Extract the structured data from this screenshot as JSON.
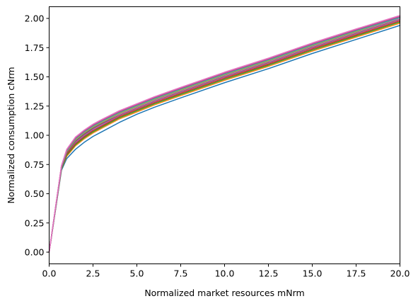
{
  "chart_data": {
    "type": "line",
    "title": "",
    "xlabel": "Normalized market resources mNrm",
    "ylabel": "Normalized consumption cNrm",
    "xlim": [
      0.0,
      20.0
    ],
    "ylim": [
      -0.1,
      2.1
    ],
    "grid": false,
    "legend": "none",
    "x_ticks": [
      "0.0",
      "2.5",
      "5.0",
      "7.5",
      "10.0",
      "12.5",
      "15.0",
      "17.5",
      "20.0"
    ],
    "y_ticks": [
      "0.00",
      "0.25",
      "0.50",
      "0.75",
      "1.00",
      "1.25",
      "1.50",
      "1.75",
      "2.00"
    ],
    "x": [
      0.0,
      0.7,
      1.0,
      1.5,
      2.0,
      2.5,
      3.0,
      4.0,
      5.0,
      6.0,
      7.5,
      10.0,
      12.5,
      15.0,
      17.5,
      20.0
    ],
    "series": [
      {
        "color": "#1f77b4",
        "values": [
          0.0,
          0.7,
          0.8,
          0.88,
          0.94,
          0.99,
          1.03,
          1.11,
          1.18,
          1.24,
          1.32,
          1.45,
          1.57,
          1.7,
          1.82,
          1.94
        ]
      },
      {
        "color": "#ff7f0e",
        "values": [
          0.0,
          0.71,
          0.82,
          0.91,
          0.97,
          1.02,
          1.06,
          1.14,
          1.2,
          1.26,
          1.34,
          1.47,
          1.59,
          1.72,
          1.84,
          1.96
        ]
      },
      {
        "color": "#2ca02c",
        "values": [
          0.0,
          0.71,
          0.83,
          0.92,
          0.98,
          1.03,
          1.07,
          1.15,
          1.21,
          1.27,
          1.35,
          1.48,
          1.6,
          1.73,
          1.85,
          1.97
        ]
      },
      {
        "color": "#d62728",
        "values": [
          0.0,
          0.72,
          0.84,
          0.93,
          0.99,
          1.04,
          1.08,
          1.16,
          1.22,
          1.28,
          1.36,
          1.49,
          1.61,
          1.74,
          1.86,
          1.98
        ]
      },
      {
        "color": "#9467bd",
        "values": [
          0.0,
          0.72,
          0.85,
          0.94,
          1.0,
          1.05,
          1.09,
          1.17,
          1.23,
          1.29,
          1.37,
          1.5,
          1.62,
          1.75,
          1.87,
          1.99
        ]
      },
      {
        "color": "#8c564b",
        "values": [
          0.0,
          0.72,
          0.85,
          0.95,
          1.01,
          1.06,
          1.1,
          1.175,
          1.235,
          1.295,
          1.375,
          1.505,
          1.625,
          1.755,
          1.875,
          1.995
        ]
      },
      {
        "color": "#e377c2",
        "values": [
          0.0,
          0.73,
          0.86,
          0.96,
          1.02,
          1.07,
          1.11,
          1.18,
          1.24,
          1.3,
          1.38,
          1.51,
          1.63,
          1.76,
          1.88,
          2.0
        ]
      },
      {
        "color": "#7f7f7f",
        "values": [
          0.0,
          0.73,
          0.86,
          0.96,
          1.02,
          1.07,
          1.11,
          1.185,
          1.245,
          1.305,
          1.385,
          1.515,
          1.635,
          1.765,
          1.885,
          2.005
        ]
      },
      {
        "color": "#bcbd22",
        "values": [
          0.0,
          0.73,
          0.86,
          0.965,
          1.025,
          1.075,
          1.115,
          1.19,
          1.25,
          1.31,
          1.39,
          1.52,
          1.64,
          1.77,
          1.89,
          2.01
        ]
      },
      {
        "color": "#17becf",
        "values": [
          0.0,
          0.73,
          0.865,
          0.97,
          1.03,
          1.08,
          1.12,
          1.195,
          1.255,
          1.315,
          1.395,
          1.525,
          1.645,
          1.775,
          1.895,
          2.01
        ]
      },
      {
        "color": "#a64d79",
        "values": [
          0.0,
          0.735,
          0.87,
          0.975,
          1.035,
          1.085,
          1.125,
          1.2,
          1.26,
          1.32,
          1.4,
          1.53,
          1.65,
          1.78,
          1.9,
          2.015
        ]
      },
      {
        "color": "#c0509a",
        "values": [
          0.0,
          0.735,
          0.875,
          0.98,
          1.04,
          1.09,
          1.13,
          1.205,
          1.265,
          1.325,
          1.405,
          1.535,
          1.655,
          1.785,
          1.905,
          2.02
        ]
      },
      {
        "color": "#e377c2",
        "values": [
          0.0,
          0.74,
          0.88,
          0.985,
          1.045,
          1.095,
          1.135,
          1.21,
          1.27,
          1.33,
          1.41,
          1.54,
          1.66,
          1.79,
          1.91,
          2.025
        ]
      }
    ]
  }
}
